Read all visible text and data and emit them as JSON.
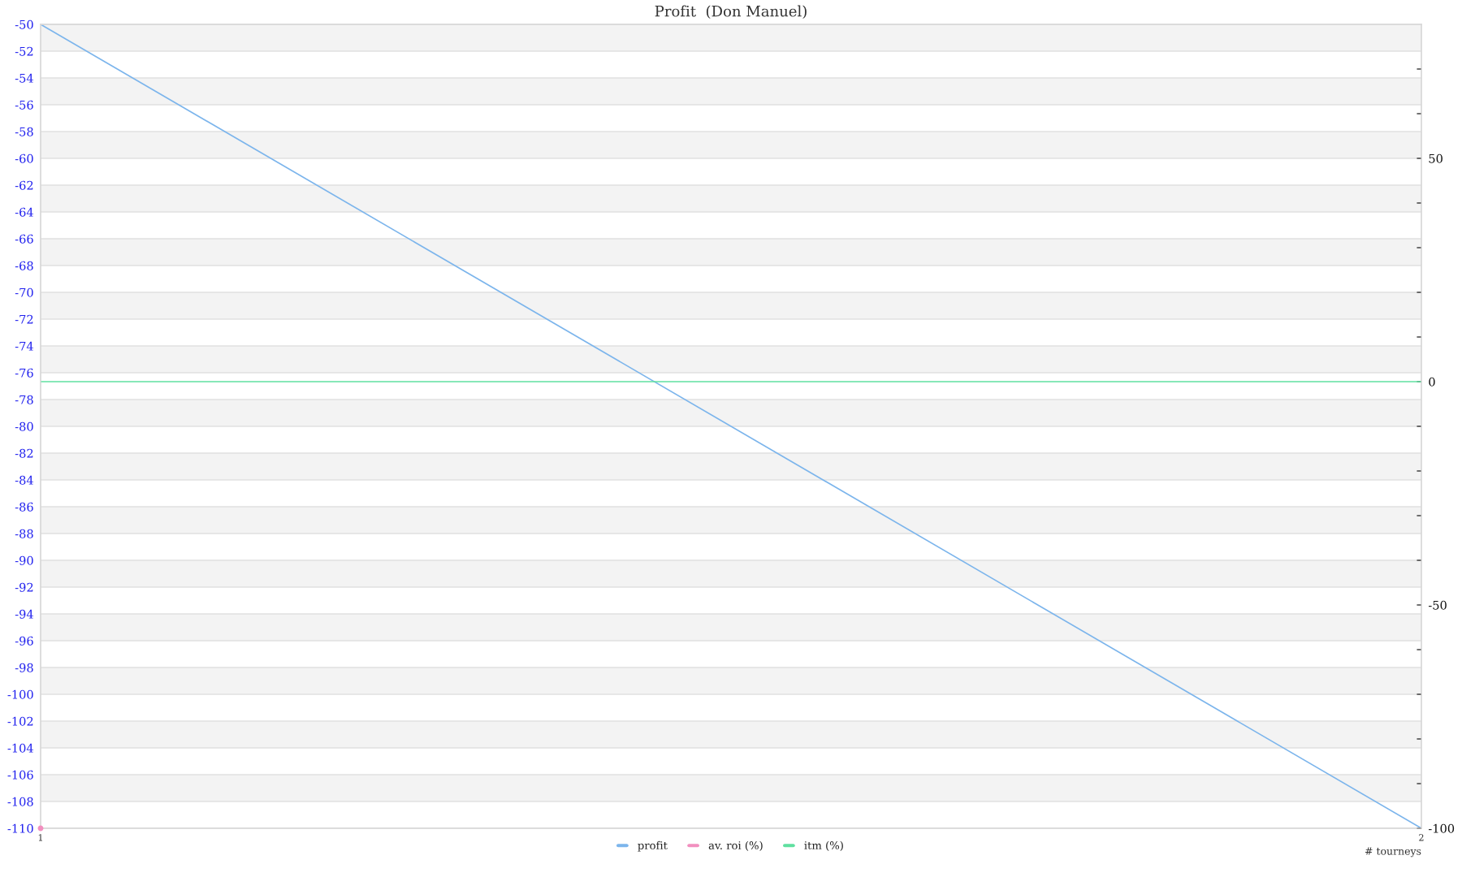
{
  "chart_data": {
    "type": "line",
    "title": "Profit  (Don Manuel)",
    "xlabel": "# tourneys",
    "x": [
      1,
      2
    ],
    "series": [
      {
        "name": "profit",
        "color": "#7cb5ec",
        "values": [
          -50,
          -110
        ]
      },
      {
        "name": "av. roi (%)",
        "color": "#f28fbf",
        "values": [
          -100,
          null
        ],
        "axis": "y2",
        "marker": "circle"
      },
      {
        "name": "itm (%)",
        "color": "#5fe0a0",
        "values": [
          0,
          0
        ],
        "axis": "y2"
      }
    ],
    "xlim": [
      1,
      2
    ],
    "xticks": [
      1,
      2
    ],
    "ylim": [
      -110,
      -50
    ],
    "yticks": [
      -50,
      -52,
      -54,
      -56,
      -58,
      -60,
      -62,
      -64,
      -66,
      -68,
      -70,
      -72,
      -74,
      -76,
      -78,
      -80,
      -82,
      -84,
      -86,
      -88,
      -90,
      -92,
      -94,
      -96,
      -98,
      -100,
      -102,
      -104,
      -106,
      -108,
      -110
    ],
    "y2lim": [
      -100,
      80
    ],
    "y2ticks": [
      {
        "value": 70,
        "label": null
      },
      {
        "value": 60,
        "label": null
      },
      50,
      {
        "value": 40,
        "label": null
      },
      {
        "value": 30,
        "label": null
      },
      {
        "value": 20,
        "label": null
      },
      {
        "value": 10,
        "label": null
      },
      0,
      {
        "value": -10,
        "label": null
      },
      {
        "value": -20,
        "label": null
      },
      {
        "value": -30,
        "label": null
      },
      {
        "value": -40,
        "label": null
      },
      -50,
      {
        "value": -60,
        "label": null
      },
      {
        "value": -70,
        "label": null
      },
      {
        "value": -80,
        "label": null
      },
      {
        "value": -90,
        "label": null
      },
      -100
    ],
    "bands": [
      {
        "axis": "y",
        "from": -50,
        "to": -52,
        "color": "#f3f3f3"
      },
      {
        "axis": "y",
        "from": -54,
        "to": -56,
        "color": "#f3f3f3"
      },
      {
        "axis": "y",
        "from": -58,
        "to": -60,
        "color": "#f3f3f3"
      },
      {
        "axis": "y",
        "from": -62,
        "to": -64,
        "color": "#f3f3f3"
      },
      {
        "axis": "y",
        "from": -66,
        "to": -68,
        "color": "#f3f3f3"
      },
      {
        "axis": "y",
        "from": -70,
        "to": -72,
        "color": "#f3f3f3"
      },
      {
        "axis": "y",
        "from": -74,
        "to": -76,
        "color": "#f3f3f3"
      },
      {
        "axis": "y",
        "from": -78,
        "to": -80,
        "color": "#f3f3f3"
      },
      {
        "axis": "y",
        "from": -82,
        "to": -84,
        "color": "#f3f3f3"
      },
      {
        "axis": "y",
        "from": -86,
        "to": -88,
        "color": "#f3f3f3"
      },
      {
        "axis": "y",
        "from": -90,
        "to": -92,
        "color": "#f3f3f3"
      },
      {
        "axis": "y",
        "from": -94,
        "to": -96,
        "color": "#f3f3f3"
      },
      {
        "axis": "y",
        "from": -98,
        "to": -100,
        "color": "#f3f3f3"
      },
      {
        "axis": "y",
        "from": -102,
        "to": -104,
        "color": "#f3f3f3"
      },
      {
        "axis": "y",
        "from": -106,
        "to": -108,
        "color": "#f3f3f3"
      }
    ],
    "grid": "y",
    "legend": "bottom"
  }
}
